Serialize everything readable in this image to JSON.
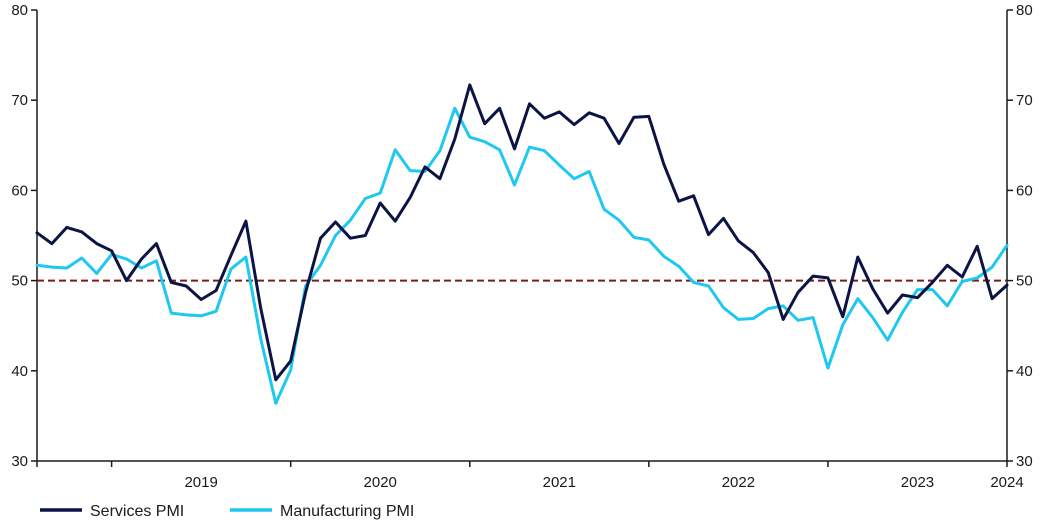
{
  "chart_data": {
    "type": "line",
    "x_start": "2018-08",
    "x_end": "2024-05",
    "year_labels": [
      "2019",
      "2020",
      "2021",
      "2022",
      "2023",
      "2024"
    ],
    "ylim": [
      30,
      80
    ],
    "y_ticks": [
      "30",
      "40",
      "50",
      "60",
      "70",
      "80"
    ],
    "reference_line": {
      "value": 50,
      "color": "#7a1c1c"
    },
    "series": [
      {
        "name": "Services PMI",
        "color": "#0c1445",
        "values": [
          55.3,
          54.1,
          55.9,
          55.4,
          54.1,
          53.3,
          50.0,
          52.4,
          54.1,
          49.8,
          49.4,
          47.9,
          48.9,
          52.8,
          56.6,
          46.9,
          39.0,
          41.1,
          48.7,
          54.7,
          56.5,
          54.7,
          55.0,
          58.6,
          56.6,
          59.2,
          62.6,
          61.3,
          65.7,
          71.7,
          67.4,
          69.1,
          64.6,
          69.6,
          68.0,
          68.7,
          67.3,
          68.6,
          68.0,
          65.2,
          68.1,
          68.2,
          62.9,
          58.8,
          59.4,
          55.1,
          56.9,
          54.4,
          53.1,
          50.9,
          45.7,
          48.7,
          50.5,
          50.3,
          46.0,
          52.6,
          49.1,
          46.4,
          48.4,
          48.1,
          49.8,
          51.7,
          50.4,
          53.8,
          48.0,
          49.5
        ]
      },
      {
        "name": "Manufacturing PMI",
        "color": "#1ec8f0",
        "values": [
          51.7,
          51.5,
          51.4,
          52.5,
          50.8,
          52.9,
          52.4,
          51.4,
          52.2,
          46.4,
          46.2,
          46.1,
          46.6,
          51.3,
          52.6,
          43.5,
          36.4,
          40.1,
          49.4,
          51.7,
          55.0,
          56.7,
          59.1,
          59.7,
          64.5,
          62.2,
          62.1,
          64.4,
          69.1,
          65.9,
          65.4,
          64.5,
          60.6,
          64.8,
          64.4,
          62.8,
          61.3,
          62.1,
          57.9,
          56.7,
          54.8,
          54.5,
          52.7,
          51.6,
          49.8,
          49.4,
          47.0,
          45.7,
          45.8,
          46.9,
          47.2,
          45.6,
          45.9,
          40.3,
          45.1,
          48.0,
          45.9,
          43.4,
          46.5,
          49.0,
          49.0,
          47.2,
          49.9,
          50.3,
          51.5,
          53.9
        ]
      }
    ],
    "legend": {
      "placement": "bottom-left",
      "items": [
        "Services PMI",
        "Manufacturing PMI"
      ]
    },
    "grid": false
  }
}
